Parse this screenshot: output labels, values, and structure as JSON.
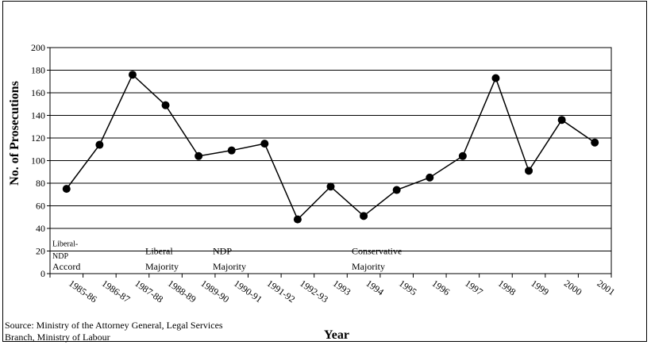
{
  "chart_data": {
    "type": "line",
    "title": "",
    "xlabel": "Year",
    "ylabel": "No. of Prosecutions",
    "ylim": [
      0,
      200
    ],
    "yticks": [
      0,
      20,
      40,
      60,
      80,
      100,
      120,
      140,
      160,
      180,
      200
    ],
    "grid": "horizontal",
    "categories": [
      "1985-86",
      "1986-87",
      "1987-88",
      "1988-89",
      "1989-90",
      "1990-91",
      "1991-92",
      "1992-93",
      "1993",
      "1994",
      "1995",
      "1996",
      "1997",
      "1998",
      "1999",
      "2000",
      "2001"
    ],
    "series": [
      {
        "values": [
          75,
          114,
          176,
          149,
          104,
          109,
          115,
          48,
          77,
          51,
          74,
          85,
          104,
          173,
          91,
          136,
          116
        ]
      }
    ],
    "annotations": [
      {
        "lines": [
          "Liberal-",
          "NDP",
          "Accord"
        ]
      },
      {
        "lines": [
          "Liberal",
          "Majority"
        ]
      },
      {
        "lines": [
          "NDP",
          "Majority"
        ]
      },
      {
        "lines": [
          "Conservative",
          "Majority"
        ]
      }
    ]
  },
  "source": {
    "line1": "Source: Ministry of the Attorney General, Legal Services",
    "line2": "Branch, Ministry of Labour"
  }
}
